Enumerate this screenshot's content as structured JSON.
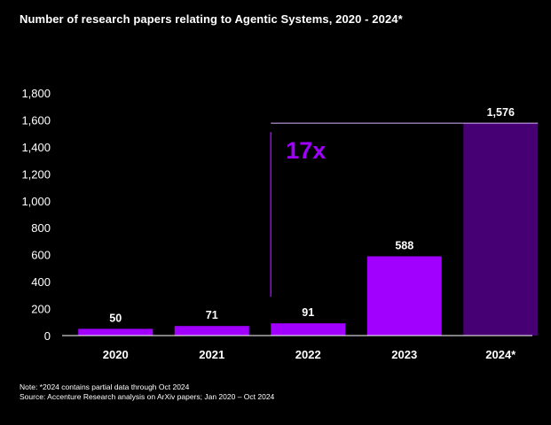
{
  "title": "Number of research papers relating to Agentic Systems, 2020 - 2024*",
  "chart_data": {
    "type": "bar",
    "title": "Number of research papers relating to Agentic Systems, 2020 - 2024*",
    "xlabel": "",
    "ylabel": "",
    "categories": [
      "2020",
      "2021",
      "2022",
      "2023",
      "2024*"
    ],
    "values": [
      50,
      71,
      91,
      588,
      1576
    ],
    "data_labels": [
      "50",
      "71",
      "91",
      "588",
      "1,576"
    ],
    "ylim": [
      0,
      1800
    ],
    "yticks": [
      0,
      200,
      400,
      600,
      800,
      1000,
      1200,
      1400,
      1600,
      1800
    ],
    "ytick_labels": [
      "0",
      "200",
      "400",
      "600",
      "800",
      "1,000",
      "1,200",
      "1,400",
      "1,600",
      "1,800"
    ],
    "grid": false,
    "legend": "none",
    "annotation": {
      "text": "17x",
      "from_category": "2022",
      "to_category": "2024*"
    },
    "colors": {
      "bar": "#a100ff",
      "highlight_bar": "#460073",
      "annotation": "#a100ff",
      "axis": "#ffffff",
      "background": "#000000"
    }
  },
  "footnotes": {
    "note": "Note: *2024 contains partial data through Oct 2024",
    "source": "Source: Accenture Research analysis on ArXiv papers; Jan 2020 – Oct 2024"
  }
}
